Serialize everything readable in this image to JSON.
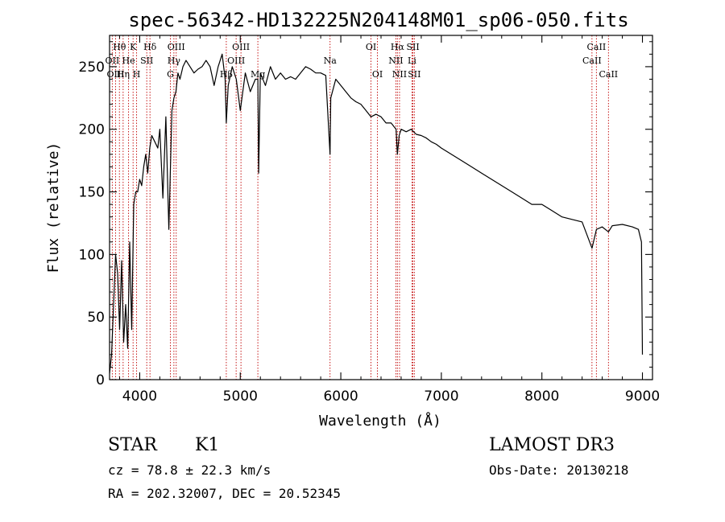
{
  "chart_data": {
    "type": "line",
    "title": "spec-56342-HD132225N204148M01_sp06-050.fits",
    "xlabel": "Wavelength (Å)",
    "ylabel": "Flux (relative)",
    "xlim": [
      3700,
      9100
    ],
    "ylim": [
      0,
      275
    ],
    "x_ticks": [
      4000,
      5000,
      6000,
      7000,
      8000,
      9000
    ],
    "x_tick_labels": [
      "4000",
      "5000",
      "6000",
      "7000",
      "8000",
      "9000"
    ],
    "y_ticks": [
      0,
      50,
      100,
      150,
      200,
      250
    ],
    "y_tick_labels": [
      "0",
      "50",
      "100",
      "150",
      "200",
      "250"
    ],
    "series": [
      {
        "name": "flux",
        "x": [
          3700,
          3720,
          3740,
          3760,
          3780,
          3800,
          3820,
          3840,
          3860,
          3880,
          3900,
          3920,
          3940,
          3960,
          3980,
          4000,
          4020,
          4040,
          4060,
          4080,
          4100,
          4120,
          4150,
          4180,
          4200,
          4230,
          4260,
          4290,
          4320,
          4340,
          4360,
          4380,
          4400,
          4430,
          4460,
          4500,
          4540,
          4580,
          4620,
          4660,
          4700,
          4740,
          4780,
          4820,
          4850,
          4861,
          4880,
          4920,
          4960,
          5000,
          5050,
          5100,
          5150,
          5175,
          5183,
          5200,
          5250,
          5300,
          5350,
          5400,
          5450,
          5500,
          5550,
          5600,
          5650,
          5700,
          5750,
          5800,
          5850,
          5893,
          5900,
          5950,
          6000,
          6050,
          6100,
          6150,
          6200,
          6250,
          6300,
          6350,
          6400,
          6450,
          6500,
          6550,
          6563,
          6580,
          6600,
          6650,
          6700,
          6750,
          6800,
          6850,
          6900,
          6950,
          7000,
          7100,
          7200,
          7300,
          7400,
          7500,
          7600,
          7700,
          7800,
          7900,
          8000,
          8100,
          8200,
          8300,
          8400,
          8498,
          8542,
          8600,
          8662,
          8700,
          8800,
          8900,
          8960,
          8990,
          9000
        ],
        "values": [
          5,
          20,
          60,
          100,
          85,
          40,
          95,
          30,
          60,
          25,
          110,
          40,
          140,
          150,
          150,
          160,
          155,
          170,
          180,
          165,
          185,
          195,
          190,
          185,
          200,
          145,
          210,
          120,
          215,
          225,
          230,
          245,
          240,
          250,
          255,
          250,
          245,
          248,
          250,
          255,
          250,
          235,
          250,
          260,
          240,
          205,
          235,
          250,
          240,
          215,
          245,
          230,
          240,
          240,
          165,
          245,
          235,
          250,
          240,
          245,
          240,
          242,
          240,
          245,
          250,
          248,
          245,
          245,
          243,
          180,
          225,
          240,
          235,
          230,
          225,
          222,
          220,
          215,
          210,
          212,
          210,
          205,
          205,
          200,
          180,
          195,
          200,
          198,
          200,
          196,
          195,
          193,
          190,
          188,
          185,
          180,
          175,
          170,
          165,
          160,
          155,
          150,
          145,
          140,
          140,
          135,
          130,
          128,
          126,
          105,
          120,
          122,
          118,
          123,
          124,
          122,
          120,
          110,
          20
        ]
      }
    ],
    "line_markers": [
      {
        "label": "Hθ",
        "wavelength": 3798,
        "row": 1
      },
      {
        "label": "OII",
        "wavelength": 3727,
        "row": 2
      },
      {
        "label": "OIII",
        "wavelength": 3760,
        "row": 3
      },
      {
        "label": "Hη",
        "wavelength": 3835,
        "row": 3
      },
      {
        "label": "K",
        "wavelength": 3934,
        "row": 1
      },
      {
        "label": "He",
        "wavelength": 3889,
        "row": 2
      },
      {
        "label": "H",
        "wavelength": 3969,
        "row": 3
      },
      {
        "label": "Hδ",
        "wavelength": 4102,
        "row": 1
      },
      {
        "label": "SII",
        "wavelength": 4070,
        "row": 2
      },
      {
        "label": "OIII",
        "wavelength": 4363,
        "row": 1
      },
      {
        "label": "Hγ",
        "wavelength": 4340,
        "row": 2
      },
      {
        "label": "G",
        "wavelength": 4305,
        "row": 3
      },
      {
        "label": "OIII",
        "wavelength": 5007,
        "row": 1
      },
      {
        "label": "OIII",
        "wavelength": 4959,
        "row": 2
      },
      {
        "label": "Hβ",
        "wavelength": 4861,
        "row": 3
      },
      {
        "label": "Mg",
        "wavelength": 5175,
        "row": 3
      },
      {
        "label": "Na",
        "wavelength": 5893,
        "row": 2
      },
      {
        "label": "OI",
        "wavelength": 6300,
        "row": 1
      },
      {
        "label": "OI",
        "wavelength": 6364,
        "row": 3
      },
      {
        "label": "Hα",
        "wavelength": 6563,
        "row": 1
      },
      {
        "label": "NII",
        "wavelength": 6548,
        "row": 2
      },
      {
        "label": "NII",
        "wavelength": 6584,
        "row": 3
      },
      {
        "label": "SII",
        "wavelength": 6717,
        "row": 1
      },
      {
        "label": "Li",
        "wavelength": 6708,
        "row": 2
      },
      {
        "label": "SII",
        "wavelength": 6731,
        "row": 3
      },
      {
        "label": "CaII",
        "wavelength": 8542,
        "row": 1
      },
      {
        "label": "CaII",
        "wavelength": 8498,
        "row": 2
      },
      {
        "label": "CaII",
        "wavelength": 8662,
        "row": 3
      }
    ]
  },
  "info": {
    "class_label": "STAR",
    "subclass": "K1",
    "cz": "cz = 78.8 ± 22.3 km/s",
    "coords": "RA = 202.32007, DEC =  20.52345",
    "survey": "LAMOST DR3",
    "obs_date": "Obs-Date: 20130218"
  },
  "colors": {
    "line": "#000000",
    "marker": "#c00000"
  }
}
